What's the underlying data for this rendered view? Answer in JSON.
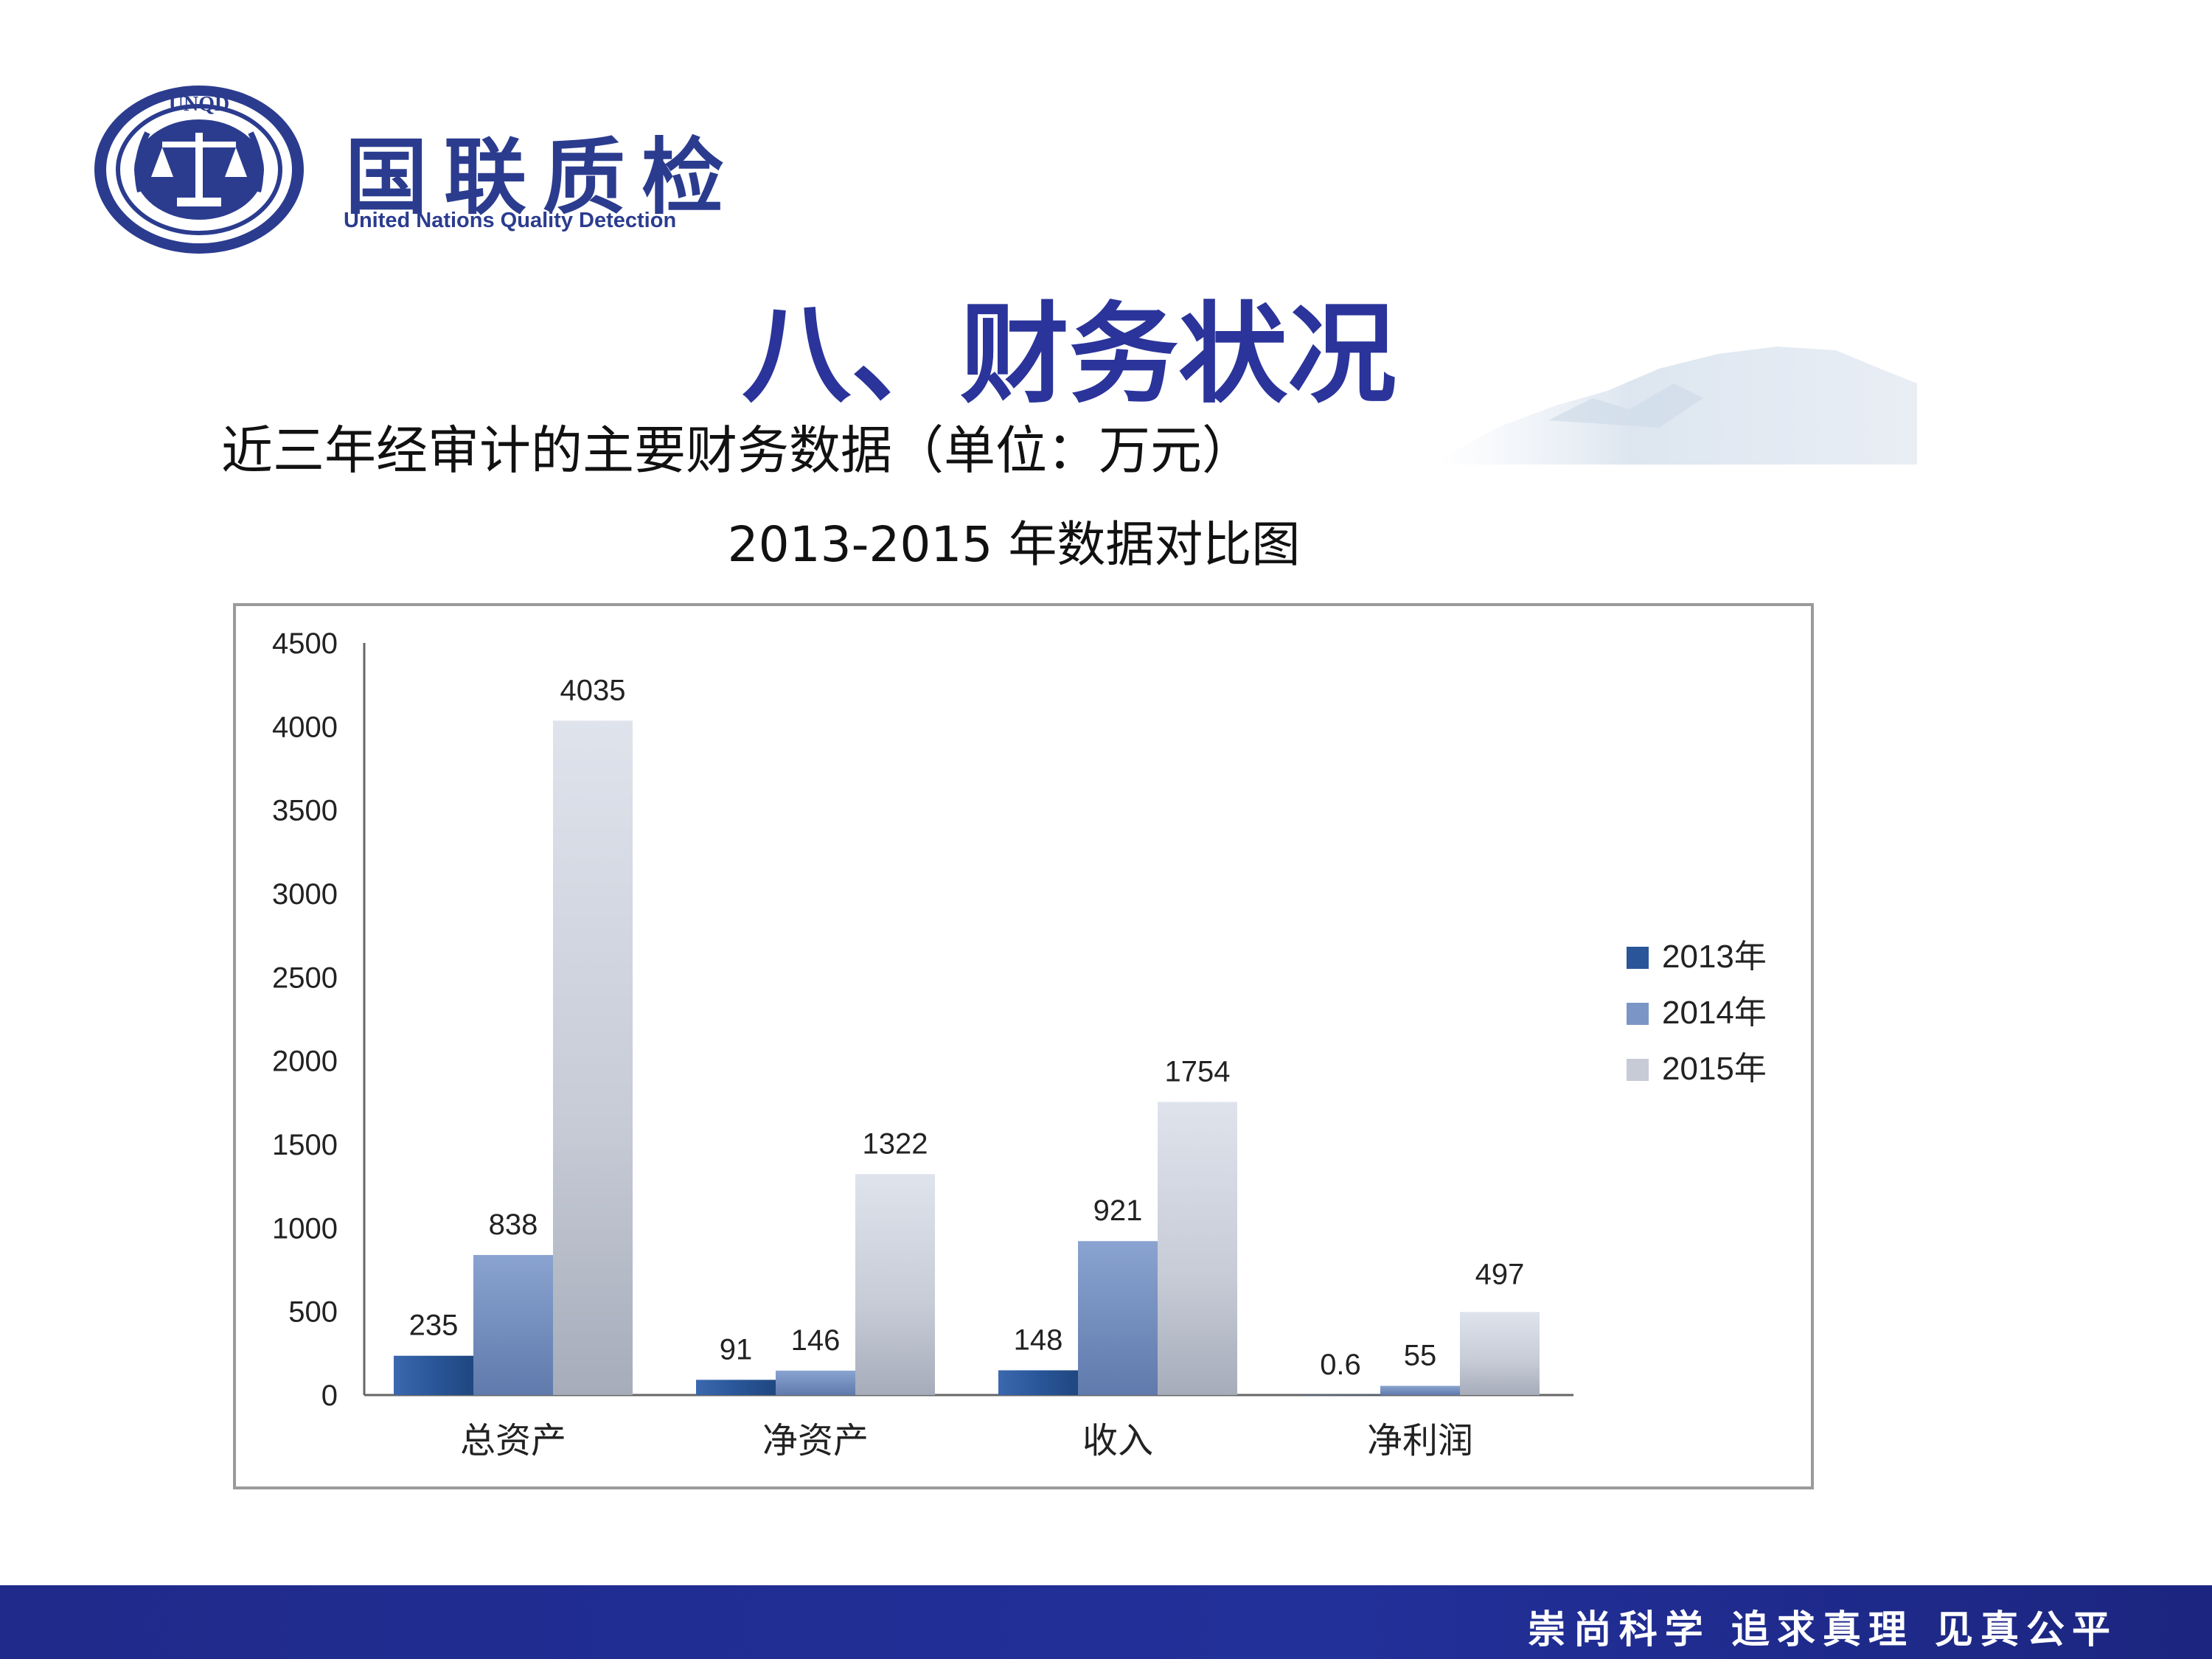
{
  "header": {
    "logo_text": "UNQD",
    "brand_name": "国联质检",
    "brand_english": "United Nations Quality Detection"
  },
  "slide": {
    "title": "八、财务状况",
    "subtitle": "近三年经审计的主要财务数据（单位：万元）"
  },
  "footer": {
    "slogan": "崇尚科学  追求真理  见真公平"
  },
  "colors": {
    "brand_blue": "#2b3c8f",
    "series_2013": "#2a5699",
    "series_2014": "#7b96c6",
    "series_2015": "#c6cbd6",
    "footer_bar": "#22309a"
  },
  "chart_data": {
    "type": "bar",
    "title": "2013-2015 年数据对比图",
    "categories": [
      "总资产",
      "净资产",
      "收入",
      "净利润"
    ],
    "series": [
      {
        "name": "2013年",
        "values": [
          235,
          91,
          148,
          0.6
        ],
        "labels": [
          "235",
          "91",
          "148",
          "0.6"
        ]
      },
      {
        "name": "2014年",
        "values": [
          838,
          146,
          921,
          55
        ],
        "labels": [
          "838",
          "146",
          "921",
          "55"
        ]
      },
      {
        "name": "2015年",
        "values": [
          4035,
          1322,
          1754,
          497
        ],
        "labels": [
          "4035",
          "1322",
          "1754",
          "497"
        ]
      }
    ],
    "ylim": [
      0,
      4500
    ],
    "yticks": [
      0,
      500,
      1000,
      1500,
      2000,
      2500,
      3000,
      3500,
      4000,
      4500
    ],
    "legend_position": "right",
    "grid": false
  }
}
